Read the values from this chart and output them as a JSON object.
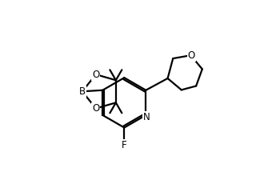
{
  "background_color": "#ffffff",
  "line_color": "#000000",
  "line_width": 1.6,
  "font_size": 8.5,
  "fig_width": 3.2,
  "fig_height": 2.2,
  "dpi": 100,
  "xlim": [
    0,
    10
  ],
  "ylim": [
    0,
    6.875
  ]
}
